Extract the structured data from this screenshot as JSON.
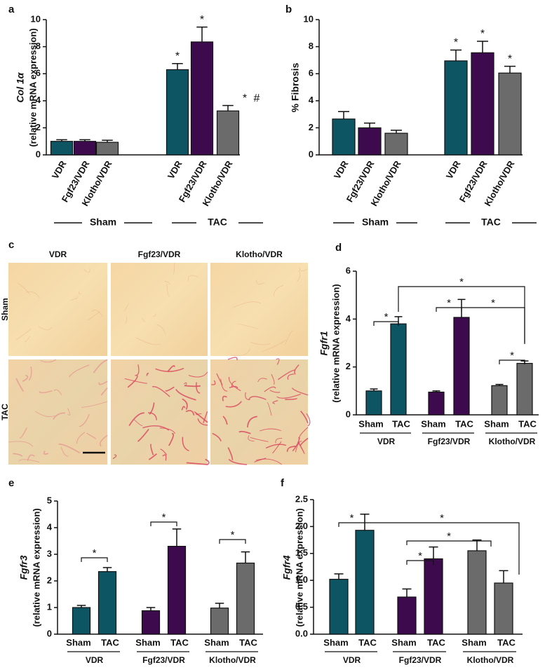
{
  "chart_data": [
    {
      "type": "bar",
      "panel_label": "a",
      "ylabel": "Col 1α",
      "ylabel_sub": "(relative mRNA expression)",
      "categories": [
        "VDR",
        "Fgf23/VDR",
        "Klotho/VDR",
        "VDR",
        "Fgf23/VDR",
        "Klotho/VDR"
      ],
      "values": [
        1.0,
        1.0,
        0.93,
        6.3,
        8.35,
        3.25
      ],
      "errors": [
        0.12,
        0.12,
        0.15,
        0.45,
        1.1,
        0.4
      ],
      "colors": [
        "#0d5563",
        "#3d0a4e",
        "#6b6b6b",
        "#0d5563",
        "#3d0a4e",
        "#6b6b6b"
      ],
      "groups": [
        "Sham",
        "TAC"
      ],
      "annotations": [
        "*",
        "*",
        "*",
        "#"
      ],
      "ylim": [
        0,
        10
      ],
      "yticks": [
        0,
        2,
        4,
        6,
        8,
        10
      ]
    },
    {
      "type": "bar",
      "panel_label": "b",
      "ylabel": "% Fibrosis",
      "categories": [
        "VDR",
        "Fgf23/VDR",
        "Klotho/VDR",
        "VDR",
        "Fgf23/VDR",
        "Klotho/VDR"
      ],
      "values": [
        2.65,
        2.0,
        1.6,
        6.95,
        7.55,
        6.05
      ],
      "errors": [
        0.55,
        0.35,
        0.22,
        0.8,
        0.85,
        0.5
      ],
      "colors": [
        "#0d5563",
        "#3d0a4e",
        "#6b6b6b",
        "#0d5563",
        "#3d0a4e",
        "#6b6b6b"
      ],
      "groups": [
        "Sham",
        "TAC"
      ],
      "annotations": [
        "*",
        "*",
        "*"
      ],
      "ylim": [
        0,
        10
      ],
      "yticks": [
        0,
        2,
        4,
        6,
        8,
        10
      ]
    },
    {
      "type": "bar",
      "panel_label": "d",
      "ylabel": "Fgfr1",
      "ylabel_sub": "(relative mRNA expression)",
      "categories": [
        "Sham",
        "TAC",
        "Sham",
        "TAC",
        "Sham",
        "TAC"
      ],
      "values": [
        1.0,
        3.8,
        0.95,
        4.07,
        1.22,
        2.15
      ],
      "errors": [
        0.08,
        0.3,
        0.05,
        0.75,
        0.05,
        0.1
      ],
      "colors": [
        "#0d5563",
        "#0d5563",
        "#3d0a4e",
        "#3d0a4e",
        "#6b6b6b",
        "#6b6b6b"
      ],
      "groups": [
        "VDR",
        "Fgf23/VDR",
        "Klotho/VDR"
      ],
      "annotations": [
        "*",
        "*",
        "*",
        "*",
        "*"
      ],
      "ylim": [
        0,
        6
      ],
      "yticks": [
        0,
        2,
        4,
        6
      ]
    },
    {
      "type": "bar",
      "panel_label": "e",
      "ylabel": "Fgfr3",
      "ylabel_sub": "(relative mRNA expression)",
      "categories": [
        "Sham",
        "TAC",
        "Sham",
        "TAC",
        "Sham",
        "TAC"
      ],
      "values": [
        1.0,
        2.35,
        0.88,
        3.3,
        0.98,
        2.67
      ],
      "errors": [
        0.08,
        0.15,
        0.12,
        0.65,
        0.18,
        0.42
      ],
      "colors": [
        "#0d5563",
        "#0d5563",
        "#3d0a4e",
        "#3d0a4e",
        "#6b6b6b",
        "#6b6b6b"
      ],
      "groups": [
        "VDR",
        "Fgf23/VDR",
        "Klotho/VDR"
      ],
      "annotations": [
        "*",
        "*",
        "*"
      ],
      "ylim": [
        0,
        5
      ],
      "yticks": [
        0,
        1,
        2,
        3,
        4,
        5
      ]
    },
    {
      "type": "bar",
      "panel_label": "f",
      "ylabel": "Fgfr4",
      "ylabel_sub": "(relative mRNA expression)",
      "categories": [
        "Sham",
        "TAC",
        "Sham",
        "TAC",
        "Sham",
        "TAC"
      ],
      "values": [
        1.02,
        1.93,
        0.69,
        1.4,
        1.55,
        0.95
      ],
      "errors": [
        0.1,
        0.3,
        0.15,
        0.22,
        0.2,
        0.23
      ],
      "colors": [
        "#0d5563",
        "#0d5563",
        "#3d0a4e",
        "#3d0a4e",
        "#6b6b6b",
        "#6b6b6b"
      ],
      "groups": [
        "VDR",
        "Fgf23/VDR",
        "Klotho/VDR"
      ],
      "annotations": [
        "*",
        "*",
        "*",
        "*"
      ],
      "ylim": [
        0,
        2.5
      ],
      "yticks": [
        {
          "value": 0,
          "label": "0.0"
        },
        {
          "value": 0.5,
          "label": "0.5"
        },
        {
          "value": 1,
          "label": "1.0"
        },
        {
          "value": 1.5,
          "label": "1.5"
        },
        {
          "value": 2,
          "label": "2.0"
        },
        {
          "value": 2.5,
          "label": "2.5"
        }
      ]
    }
  ],
  "micrographs": {
    "panel_label": "c",
    "columns": [
      "VDR",
      "Fgf23/VDR",
      "Klotho/VDR"
    ],
    "rows": [
      "Sham",
      "TAC"
    ]
  }
}
